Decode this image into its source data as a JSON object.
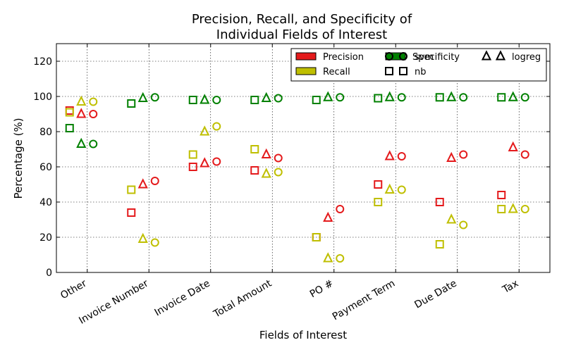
{
  "chart_data": {
    "type": "scatter",
    "title_lines": [
      "Precision, Recall, and Specificity of",
      "Individual Fields of Interest"
    ],
    "xlabel": "Fields of Interest",
    "ylabel": "Percentage (%)",
    "ylim": [
      0,
      130
    ],
    "yticks": [
      0,
      20,
      40,
      60,
      80,
      100,
      120
    ],
    "grid": true,
    "legend_position": "top-right",
    "categories": [
      "Other",
      "Invoice Number",
      "Invoice Date",
      "Total Amount",
      "PO #",
      "Payment Term",
      "Due Date",
      "Tax"
    ],
    "metrics": [
      {
        "name": "Precision",
        "color": "#e41a1c"
      },
      {
        "name": "Recall",
        "color": "#bfbf00"
      },
      {
        "name": "Specificity",
        "color": "#008000"
      }
    ],
    "models": [
      {
        "name": "nb",
        "marker": "square"
      },
      {
        "name": "logreg",
        "marker": "triangle"
      },
      {
        "name": "svm",
        "marker": "circle"
      }
    ],
    "series": [
      {
        "model": "nb",
        "metric": "Precision",
        "values": [
          92,
          34,
          60,
          58,
          20,
          50,
          40,
          44
        ]
      },
      {
        "model": "nb",
        "metric": "Recall",
        "values": [
          91,
          47,
          67,
          70,
          20,
          40,
          16,
          36
        ]
      },
      {
        "model": "nb",
        "metric": "Specificity",
        "values": [
          82,
          96,
          98,
          98,
          98,
          99,
          99.5,
          99.5
        ]
      },
      {
        "model": "logreg",
        "metric": "Precision",
        "values": [
          90,
          50,
          62,
          67,
          31,
          66,
          65,
          71
        ]
      },
      {
        "model": "logreg",
        "metric": "Recall",
        "values": [
          97,
          19,
          80,
          56,
          8,
          47,
          30,
          36
        ]
      },
      {
        "model": "logreg",
        "metric": "Specificity",
        "values": [
          73,
          99,
          98,
          99,
          99.5,
          99.5,
          99.5,
          99.5
        ]
      },
      {
        "model": "svm",
        "metric": "Precision",
        "values": [
          90,
          52,
          63,
          65,
          36,
          66,
          67,
          67
        ]
      },
      {
        "model": "svm",
        "metric": "Recall",
        "values": [
          97,
          17,
          83,
          57,
          8,
          47,
          27,
          36
        ]
      },
      {
        "model": "svm",
        "metric": "Specificity",
        "values": [
          73,
          99.5,
          98,
          99,
          99.5,
          99.5,
          99.5,
          99.5
        ]
      }
    ]
  }
}
